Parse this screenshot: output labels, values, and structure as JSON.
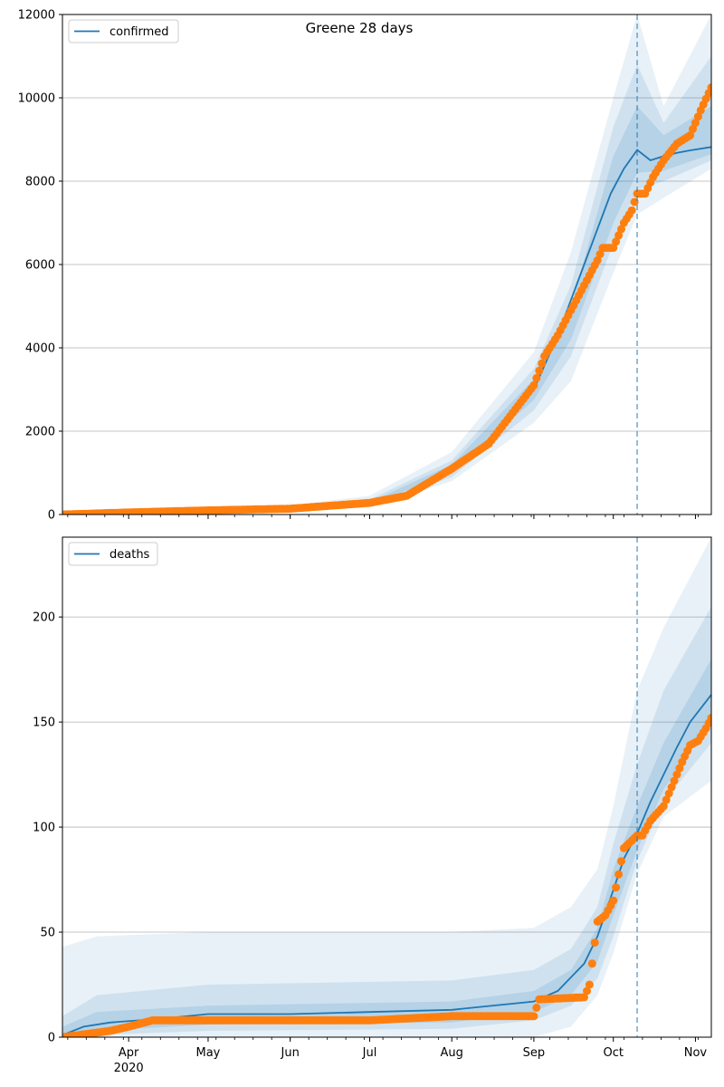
{
  "title": "Greene 28 days",
  "colors": {
    "model_line": "#1f77b4",
    "observed": "#ff7f0e",
    "band": "#1f77b4",
    "grid": "#b0b0b0",
    "vline": "#1f77b4"
  },
  "x_axis": {
    "start": "2020-03-07",
    "end": "2020-11-07",
    "year_label": "2020",
    "month_ticks": [
      {
        "label": "Apr",
        "date": "2020-04-01"
      },
      {
        "label": "May",
        "date": "2020-05-01"
      },
      {
        "label": "Jun",
        "date": "2020-06-01"
      },
      {
        "label": "Jul",
        "date": "2020-07-01"
      },
      {
        "label": "Aug",
        "date": "2020-08-01"
      },
      {
        "label": "Sep",
        "date": "2020-09-01"
      },
      {
        "label": "Oct",
        "date": "2020-10-01"
      },
      {
        "label": "Nov",
        "date": "2020-11-01"
      }
    ]
  },
  "chart_data": [
    {
      "type": "line",
      "panel": "top",
      "legend": [
        "confirmed"
      ],
      "legend_position": "upper left",
      "grid": "y",
      "ylim": [
        0,
        12000
      ],
      "yticks": [
        0,
        2000,
        4000,
        6000,
        8000,
        10000,
        12000
      ],
      "forecast_start": "2020-10-10",
      "series": [
        {
          "name": "confirmed",
          "kind": "model",
          "x": [
            "2020-03-07",
            "2020-04-01",
            "2020-05-01",
            "2020-06-01",
            "2020-07-01",
            "2020-07-15",
            "2020-08-01",
            "2020-08-15",
            "2020-09-01",
            "2020-09-10",
            "2020-09-20",
            "2020-09-30",
            "2020-10-05",
            "2020-10-10",
            "2020-10-15",
            "2020-10-20",
            "2020-10-25",
            "2020-10-30",
            "2020-11-07"
          ],
          "values": [
            0,
            50,
            100,
            130,
            260,
            450,
            1100,
            1800,
            3000,
            4300,
            6000,
            7700,
            8300,
            8750,
            8500,
            8600,
            8680,
            8740,
            8820
          ]
        },
        {
          "name": "observed",
          "kind": "observed",
          "x": [
            "2020-03-07",
            "2020-04-01",
            "2020-05-01",
            "2020-06-01",
            "2020-07-01",
            "2020-07-15",
            "2020-08-01",
            "2020-08-15",
            "2020-09-01",
            "2020-09-05",
            "2020-09-10",
            "2020-09-15",
            "2020-09-20",
            "2020-09-25",
            "2020-09-27",
            "2020-10-01",
            "2020-10-05",
            "2020-10-08",
            "2020-10-10",
            "2020-10-13",
            "2020-10-16",
            "2020-10-20",
            "2020-10-25",
            "2020-10-30",
            "2020-11-03",
            "2020-11-07"
          ],
          "values": [
            0,
            50,
            100,
            140,
            280,
            450,
            1100,
            1700,
            3100,
            3800,
            4300,
            4900,
            5500,
            6100,
            6400,
            6400,
            7000,
            7300,
            7700,
            7700,
            8100,
            8500,
            8900,
            9100,
            9700,
            10250
          ]
        }
      ],
      "bands": [
        {
          "x": [
            "2020-03-07",
            "2020-06-01",
            "2020-07-01",
            "2020-08-01",
            "2020-09-01",
            "2020-09-15",
            "2020-10-01",
            "2020-10-10",
            "2020-10-20",
            "2020-11-07"
          ],
          "lower": [
            0,
            80,
            180,
            800,
            2200,
            3200,
            5800,
            7200,
            7600,
            8300
          ],
          "upper": [
            50,
            220,
            450,
            1500,
            3900,
            6300,
            10000,
            12000,
            9800,
            12000
          ]
        },
        {
          "x": [
            "2020-03-07",
            "2020-06-01",
            "2020-07-01",
            "2020-08-01",
            "2020-09-01",
            "2020-09-15",
            "2020-10-01",
            "2020-10-10",
            "2020-10-20",
            "2020-11-07"
          ],
          "lower": [
            0,
            100,
            210,
            900,
            2500,
            3800,
            6500,
            7800,
            8000,
            8500
          ],
          "upper": [
            30,
            180,
            360,
            1300,
            3500,
            5500,
            9300,
            10800,
            9400,
            11000
          ]
        },
        {
          "x": [
            "2020-03-07",
            "2020-06-01",
            "2020-07-01",
            "2020-08-01",
            "2020-09-01",
            "2020-09-15",
            "2020-10-01",
            "2020-10-10",
            "2020-10-20",
            "2020-11-07"
          ],
          "lower": [
            0,
            115,
            235,
            1000,
            2750,
            4200,
            7000,
            8200,
            8250,
            8650
          ],
          "upper": [
            15,
            150,
            300,
            1200,
            3250,
            5000,
            8600,
            9800,
            9100,
            9800
          ]
        }
      ]
    },
    {
      "type": "line",
      "panel": "bottom",
      "legend": [
        "deaths"
      ],
      "legend_position": "upper left",
      "grid": "y",
      "ylim": [
        0,
        238
      ],
      "yticks": [
        0,
        50,
        100,
        150,
        200
      ],
      "forecast_start": "2020-10-10",
      "series": [
        {
          "name": "deaths",
          "kind": "model",
          "x": [
            "2020-03-07",
            "2020-03-15",
            "2020-03-25",
            "2020-04-05",
            "2020-04-15",
            "2020-05-01",
            "2020-06-01",
            "2020-07-01",
            "2020-08-01",
            "2020-09-01",
            "2020-09-10",
            "2020-09-20",
            "2020-09-25",
            "2020-10-01",
            "2020-10-05",
            "2020-10-10",
            "2020-10-15",
            "2020-10-20",
            "2020-10-25",
            "2020-10-30",
            "2020-11-07"
          ],
          "values": [
            1,
            5,
            7,
            8,
            9,
            11,
            11,
            12,
            13,
            17,
            22,
            35,
            48,
            70,
            85,
            97,
            112,
            125,
            138,
            150,
            163
          ]
        },
        {
          "name": "observed",
          "kind": "observed",
          "x": [
            "2020-03-07",
            "2020-03-25",
            "2020-04-01",
            "2020-04-10",
            "2020-05-01",
            "2020-06-01",
            "2020-07-01",
            "2020-08-01",
            "2020-09-01",
            "2020-09-03",
            "2020-09-20",
            "2020-09-22",
            "2020-09-25",
            "2020-09-28",
            "2020-10-01",
            "2020-10-05",
            "2020-10-10",
            "2020-10-12",
            "2020-10-15",
            "2020-10-20",
            "2020-10-24",
            "2020-10-27",
            "2020-10-30",
            "2020-11-02",
            "2020-11-05",
            "2020-11-07"
          ],
          "values": [
            0,
            3,
            5,
            8,
            8,
            8,
            8,
            10,
            10,
            18,
            19,
            25,
            55,
            58,
            65,
            90,
            96,
            96,
            103,
            110,
            122,
            131,
            139,
            141,
            147,
            152
          ]
        }
      ],
      "bands": [
        {
          "x": [
            "2020-03-07",
            "2020-03-20",
            "2020-05-01",
            "2020-08-01",
            "2020-09-01",
            "2020-09-15",
            "2020-09-25",
            "2020-10-01",
            "2020-10-10",
            "2020-10-20",
            "2020-11-07"
          ],
          "lower": [
            0,
            0,
            0,
            0,
            0,
            5,
            20,
            40,
            78,
            105,
            122
          ],
          "upper": [
            43,
            48,
            50,
            50,
            52,
            62,
            80,
            110,
            165,
            195,
            238
          ]
        },
        {
          "x": [
            "2020-03-07",
            "2020-03-20",
            "2020-05-01",
            "2020-08-01",
            "2020-09-01",
            "2020-09-15",
            "2020-09-25",
            "2020-10-01",
            "2020-10-10",
            "2020-10-20",
            "2020-11-07"
          ],
          "lower": [
            0,
            1,
            3,
            4,
            8,
            15,
            28,
            48,
            84,
            112,
            140
          ],
          "upper": [
            10,
            20,
            25,
            27,
            32,
            42,
            62,
            92,
            130,
            165,
            205
          ]
        },
        {
          "x": [
            "2020-03-07",
            "2020-03-20",
            "2020-05-01",
            "2020-08-01",
            "2020-09-01",
            "2020-09-15",
            "2020-09-25",
            "2020-10-01",
            "2020-10-10",
            "2020-10-20",
            "2020-11-07"
          ],
          "lower": [
            0,
            3,
            6,
            7,
            12,
            20,
            36,
            58,
            89,
            118,
            150
          ],
          "upper": [
            5,
            12,
            15,
            17,
            22,
            32,
            52,
            80,
            110,
            140,
            180
          ]
        }
      ]
    }
  ]
}
